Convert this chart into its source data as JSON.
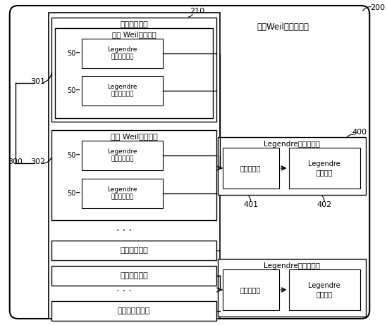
{
  "bg_color": "#ffffff",
  "fig_width": 5.49,
  "fig_height": 4.62,
  "dpi": 100,
  "labels": {
    "outer_box_label": "多路Weil码发生装置",
    "ch1_outer": "相关器通道一",
    "ch1_data": "数据 Weil码发生器",
    "ch1_leg1": "Legendre\n序列控制器一",
    "ch1_leg2": "Legendre\n序列控制器二",
    "ch1_num1": "50",
    "ch1_num2": "50",
    "ch2_outer": "导频 Weil码发生器",
    "ch2_leg1": "Legendre\n序列控制器一",
    "ch2_leg2": "Legendre\n序列控制器二",
    "ch2_num1": "50",
    "ch2_num2": "50",
    "ch6": "相关器通道六",
    "ch7": "相关器通道七",
    "ch12": "相关器通道十二",
    "mod1_outer": "Legendre序列模块一",
    "mod1_arb": "请求仲裁器",
    "mod1_arr": "Legendre\n序列数组",
    "mod2_outer": "Legendre序列模块二",
    "mod2_arb": "请求仲裁器",
    "mod2_arr": "Legendre\n序列数组",
    "num_200": "200",
    "num_210": "210",
    "num_300": "300",
    "num_301": "301",
    "num_302": "302",
    "num_400": "400",
    "num_401": "401",
    "num_402": "402"
  }
}
